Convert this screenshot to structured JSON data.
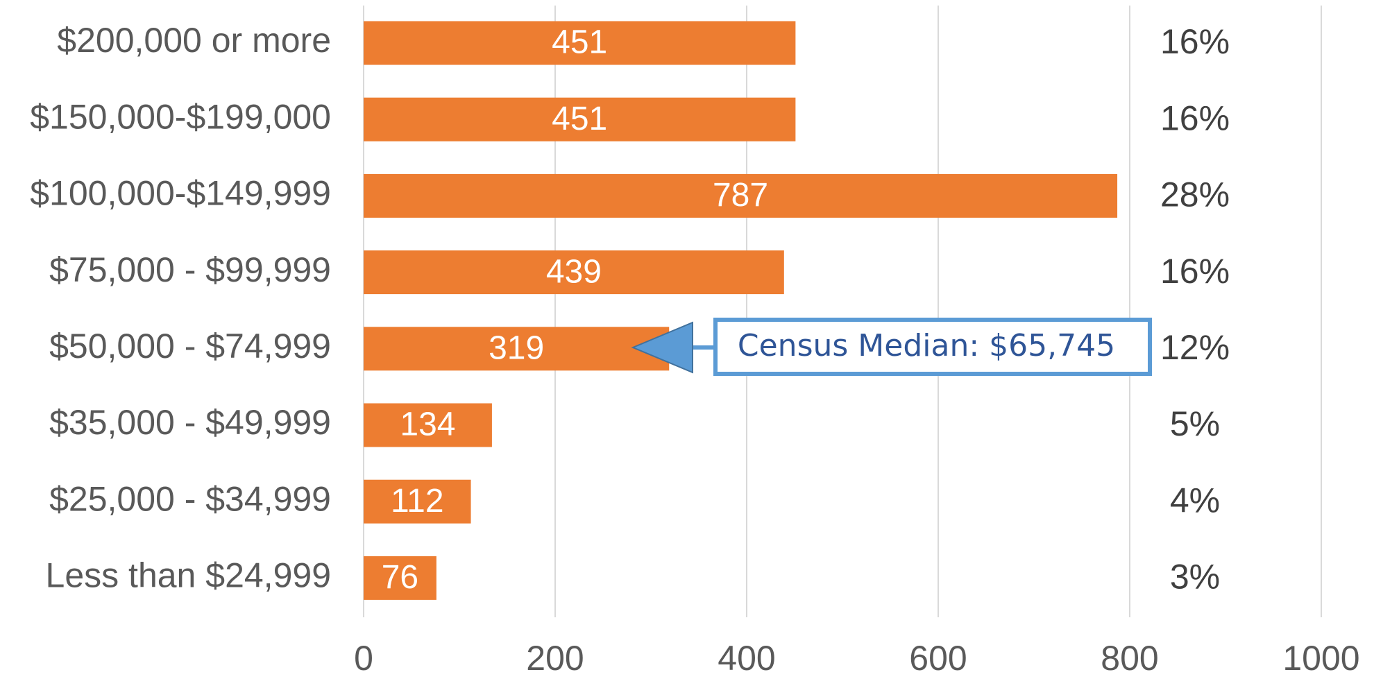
{
  "chart_data": {
    "type": "bar",
    "orientation": "horizontal",
    "categories": [
      "$200,000 or more",
      "$150,000-$199,000",
      "$100,000-$149,999",
      "$75,000 - $99,999",
      "$50,000 - $74,999",
      "$35,000 - $49,999",
      "$25,000 - $34,999",
      "Less than $24,999"
    ],
    "values": [
      451,
      451,
      787,
      439,
      319,
      134,
      112,
      76
    ],
    "percent_labels": [
      "16%",
      "16%",
      "28%",
      "16%",
      "12%",
      "5%",
      "4%",
      "3%"
    ],
    "color": "#ed7d31",
    "xlim": [
      0,
      1000
    ],
    "xticks": [
      0,
      200,
      400,
      600,
      800,
      1000
    ],
    "grid": true,
    "annotation": "Census Median: $65,745"
  }
}
